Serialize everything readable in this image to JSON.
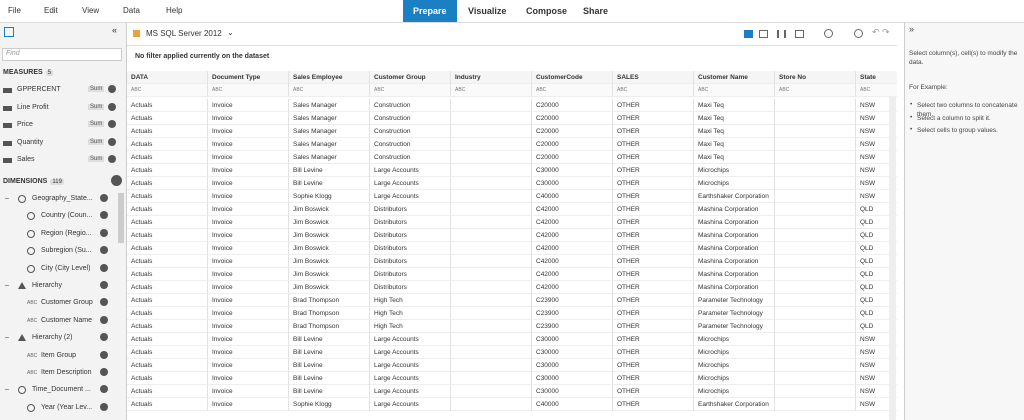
{
  "menu": [
    "File",
    "Edit",
    "View",
    "Data",
    "Help"
  ],
  "tabs": {
    "items": [
      "Prepare",
      "Visualize",
      "Compose",
      "Share"
    ],
    "active": 0
  },
  "left_panel": {
    "search_placeholder": "Find",
    "measures": {
      "title": "MEASURES",
      "count": "5",
      "items": [
        {
          "name": "GPPERCENT",
          "agg": "Sum"
        },
        {
          "name": "Line Profit",
          "agg": "Sum"
        },
        {
          "name": "Price",
          "agg": "Sum"
        },
        {
          "name": "Quantity",
          "agg": "Sum"
        },
        {
          "name": "Sales",
          "agg": "Sum"
        }
      ]
    },
    "dimensions": {
      "title": "DIMENSIONS",
      "count": "119",
      "items": [
        {
          "label": "Geography_State...",
          "icon": "geo",
          "level": 0
        },
        {
          "label": "Country (Coun...",
          "icon": "globe",
          "level": 1
        },
        {
          "label": "Region (Regio...",
          "icon": "globe",
          "level": 1
        },
        {
          "label": "Subregion (Su...",
          "icon": "globe",
          "level": 1
        },
        {
          "label": "City (City Level)",
          "icon": "globe",
          "level": 1
        },
        {
          "label": "Hierarchy",
          "icon": "tree",
          "level": 0
        },
        {
          "label": "Customer Group",
          "icon": "text",
          "tag": "ABC",
          "level": 1
        },
        {
          "label": "Customer Name",
          "icon": "text",
          "tag": "ABC",
          "level": 1
        },
        {
          "label": "Hierarchy (2)",
          "icon": "tree",
          "level": 0
        },
        {
          "label": "Item Group",
          "icon": "text",
          "tag": "ABC",
          "level": 1
        },
        {
          "label": "Item Description",
          "icon": "text",
          "tag": "ABC",
          "level": 1
        },
        {
          "label": "Time_Document ...",
          "icon": "time",
          "level": 0
        },
        {
          "label": "Year (Year Lev...",
          "icon": "clock",
          "level": 1
        }
      ]
    }
  },
  "toolbar": {
    "source": "MS SQL Server 2012",
    "filter_message": "No filter applied currently on the dataset"
  },
  "table": {
    "columns": [
      "DATA",
      "Document Type",
      "Sales Employee",
      "Customer Group",
      "Industry",
      "CustomerCode",
      "SALES",
      "Customer Name",
      "Store No",
      "State"
    ],
    "types": [
      "ABC",
      "ABC",
      "ABC",
      "ABC",
      "ABC",
      "ABC",
      "ABC",
      "ABC",
      "ABC",
      "ABC"
    ],
    "rows": [
      [
        "Actuals",
        "Invoice",
        "Sales Manager",
        "Construction",
        null,
        "C20000",
        "OTHER",
        "Maxi Teq",
        null,
        "NSW"
      ],
      [
        "Actuals",
        "Invoice",
        "Sales Manager",
        "Construction",
        null,
        "C20000",
        "OTHER",
        "Maxi Teq",
        null,
        "NSW"
      ],
      [
        "Actuals",
        "Invoice",
        "Sales Manager",
        "Construction",
        null,
        "C20000",
        "OTHER",
        "Maxi Teq",
        null,
        "NSW"
      ],
      [
        "Actuals",
        "Invoice",
        "Sales Manager",
        "Construction",
        null,
        "C20000",
        "OTHER",
        "Maxi Teq",
        null,
        "NSW"
      ],
      [
        "Actuals",
        "Invoice",
        "Sales Manager",
        "Construction",
        null,
        "C20000",
        "OTHER",
        "Maxi Teq",
        null,
        "NSW"
      ],
      [
        "Actuals",
        "Invoice",
        "Bill Levine",
        "Large Accounts",
        null,
        "C30000",
        "OTHER",
        "Microchips",
        null,
        "NSW"
      ],
      [
        "Actuals",
        "Invoice",
        "Bill Levine",
        "Large Accounts",
        null,
        "C30000",
        "OTHER",
        "Microchips",
        null,
        "NSW"
      ],
      [
        "Actuals",
        "Invoice",
        "Sophie Klogg",
        "Large Accounts",
        null,
        "C40000",
        "OTHER",
        "Earthshaker Corporation",
        null,
        "NSW"
      ],
      [
        "Actuals",
        "Invoice",
        "Jim Boswick",
        "Distributors",
        null,
        "C42000",
        "OTHER",
        "Mashina Corporation",
        null,
        "QLD"
      ],
      [
        "Actuals",
        "Invoice",
        "Jim Boswick",
        "Distributors",
        null,
        "C42000",
        "OTHER",
        "Mashina Corporation",
        null,
        "QLD"
      ],
      [
        "Actuals",
        "Invoice",
        "Jim Boswick",
        "Distributors",
        null,
        "C42000",
        "OTHER",
        "Mashina Corporation",
        null,
        "QLD"
      ],
      [
        "Actuals",
        "Invoice",
        "Jim Boswick",
        "Distributors",
        null,
        "C42000",
        "OTHER",
        "Mashina Corporation",
        null,
        "QLD"
      ],
      [
        "Actuals",
        "Invoice",
        "Jim Boswick",
        "Distributors",
        null,
        "C42000",
        "OTHER",
        "Mashina Corporation",
        null,
        "QLD"
      ],
      [
        "Actuals",
        "Invoice",
        "Jim Boswick",
        "Distributors",
        null,
        "C42000",
        "OTHER",
        "Mashina Corporation",
        null,
        "QLD"
      ],
      [
        "Actuals",
        "Invoice",
        "Jim Boswick",
        "Distributors",
        null,
        "C42000",
        "OTHER",
        "Mashina Corporation",
        null,
        "QLD"
      ],
      [
        "Actuals",
        "Invoice",
        "Brad Thompson",
        "High Tech",
        null,
        "C23900",
        "OTHER",
        "Parameter Technology",
        null,
        "QLD"
      ],
      [
        "Actuals",
        "Invoice",
        "Brad Thompson",
        "High Tech",
        null,
        "C23900",
        "OTHER",
        "Parameter Technology",
        null,
        "QLD"
      ],
      [
        "Actuals",
        "Invoice",
        "Brad Thompson",
        "High Tech",
        null,
        "C23900",
        "OTHER",
        "Parameter Technology",
        null,
        "QLD"
      ],
      [
        "Actuals",
        "Invoice",
        "Bill Levine",
        "Large Accounts",
        null,
        "C30000",
        "OTHER",
        "Microchips",
        null,
        "NSW"
      ],
      [
        "Actuals",
        "Invoice",
        "Bill Levine",
        "Large Accounts",
        null,
        "C30000",
        "OTHER",
        "Microchips",
        null,
        "NSW"
      ],
      [
        "Actuals",
        "Invoice",
        "Bill Levine",
        "Large Accounts",
        null,
        "C30000",
        "OTHER",
        "Microchips",
        null,
        "NSW"
      ],
      [
        "Actuals",
        "Invoice",
        "Bill Levine",
        "Large Accounts",
        null,
        "C30000",
        "OTHER",
        "Microchips",
        null,
        "NSW"
      ],
      [
        "Actuals",
        "Invoice",
        "Bill Levine",
        "Large Accounts",
        null,
        "C30000",
        "OTHER",
        "Microchips",
        null,
        "NSW"
      ],
      [
        "Actuals",
        "Invoice",
        "Sophie Klogg",
        "Large Accounts",
        null,
        "C40000",
        "OTHER",
        "Earthshaker Corporation",
        null,
        "NSW"
      ]
    ]
  },
  "right_panel": {
    "intro": "Select column(s), cell(s) to modify the data.",
    "example_title": "For Example:",
    "bullets": [
      "Select two columns to concatenate them.",
      "Select a column to split it.",
      "Select cells to group values."
    ]
  }
}
